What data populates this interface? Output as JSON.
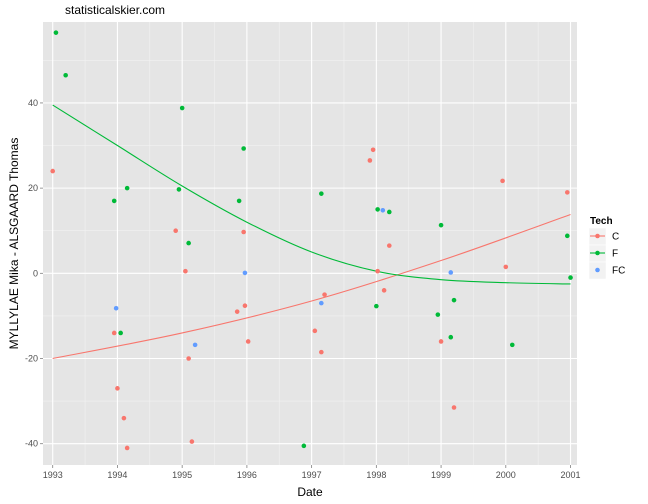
{
  "site_title": "statisticalskier.com",
  "chart_data": {
    "type": "scatter",
    "xlabel": "Date",
    "ylabel": "MYLLYLAE Mika - ALSGAARD Thomas",
    "x_ticks": [
      "1993",
      "1994",
      "1995",
      "1996",
      "1997",
      "1998",
      "1999",
      "2000",
      "2001"
    ],
    "y_ticks": [
      -40,
      -20,
      0,
      20,
      40
    ],
    "xlim": [
      1992.85,
      2001.1
    ],
    "ylim": [
      -45,
      59
    ],
    "grid": true,
    "legend": {
      "title": "Tech",
      "placement": "right"
    },
    "series": [
      {
        "name": "C",
        "color": "#F8766D",
        "points": [
          [
            1993.0,
            24
          ],
          [
            1993.95,
            -14
          ],
          [
            1994.0,
            -27
          ],
          [
            1994.1,
            -34
          ],
          [
            1994.15,
            -41
          ],
          [
            1994.9,
            10
          ],
          [
            1995.05,
            0.5
          ],
          [
            1995.1,
            -20
          ],
          [
            1995.15,
            -39.5
          ],
          [
            1995.85,
            -9
          ],
          [
            1995.95,
            9.7
          ],
          [
            1995.97,
            -7.6
          ],
          [
            1996.02,
            -16
          ],
          [
            1997.05,
            -13.5
          ],
          [
            1997.15,
            -18.5
          ],
          [
            1997.2,
            -5
          ],
          [
            1997.9,
            26.5
          ],
          [
            1997.95,
            29
          ],
          [
            1998.02,
            0.5
          ],
          [
            1998.12,
            -4
          ],
          [
            1998.2,
            6.5
          ],
          [
            1999.0,
            -16
          ],
          [
            1999.2,
            -31.5
          ],
          [
            1999.95,
            21.7
          ],
          [
            2000.0,
            1.5
          ],
          [
            2000.95,
            19
          ]
        ],
        "fit": [
          [
            1993.0,
            -20
          ],
          [
            1995.0,
            -14
          ],
          [
            1997.0,
            -6.5
          ],
          [
            1999.0,
            3
          ],
          [
            2001.0,
            13.8
          ]
        ]
      },
      {
        "name": "F",
        "color": "#00BA38",
        "points": [
          [
            1993.05,
            56.5
          ],
          [
            1993.2,
            46.5
          ],
          [
            1993.95,
            17
          ],
          [
            1994.05,
            -14
          ],
          [
            1994.15,
            20
          ],
          [
            1994.95,
            19.7
          ],
          [
            1995.0,
            38.8
          ],
          [
            1995.1,
            7.1
          ],
          [
            1995.88,
            17
          ],
          [
            1995.95,
            29.3
          ],
          [
            1996.88,
            -40.5
          ],
          [
            1997.15,
            18.7
          ],
          [
            1998.0,
            -7.7
          ],
          [
            1998.02,
            15
          ],
          [
            1998.2,
            14.4
          ],
          [
            1998.95,
            -9.7
          ],
          [
            1999.0,
            11.3
          ],
          [
            1999.15,
            -15
          ],
          [
            1999.2,
            -6.3
          ],
          [
            2000.1,
            -16.8
          ],
          [
            2000.95,
            8.8
          ],
          [
            2001.0,
            -1
          ]
        ],
        "fit": [
          [
            1993.0,
            39.5
          ],
          [
            1994.0,
            30
          ],
          [
            1995.0,
            20.5
          ],
          [
            1996.0,
            12
          ],
          [
            1997.0,
            5
          ],
          [
            1998.0,
            0.5
          ],
          [
            1999.0,
            -1.5
          ],
          [
            2000.0,
            -2.2
          ],
          [
            2001.0,
            -2.5
          ]
        ]
      },
      {
        "name": "FC",
        "color": "#619CFF",
        "points": [
          [
            1993.98,
            -8.2
          ],
          [
            1995.2,
            -16.8
          ],
          [
            1995.97,
            0.1
          ],
          [
            1997.15,
            -7
          ],
          [
            1998.1,
            14.8
          ],
          [
            1999.15,
            0.2
          ]
        ]
      }
    ]
  }
}
